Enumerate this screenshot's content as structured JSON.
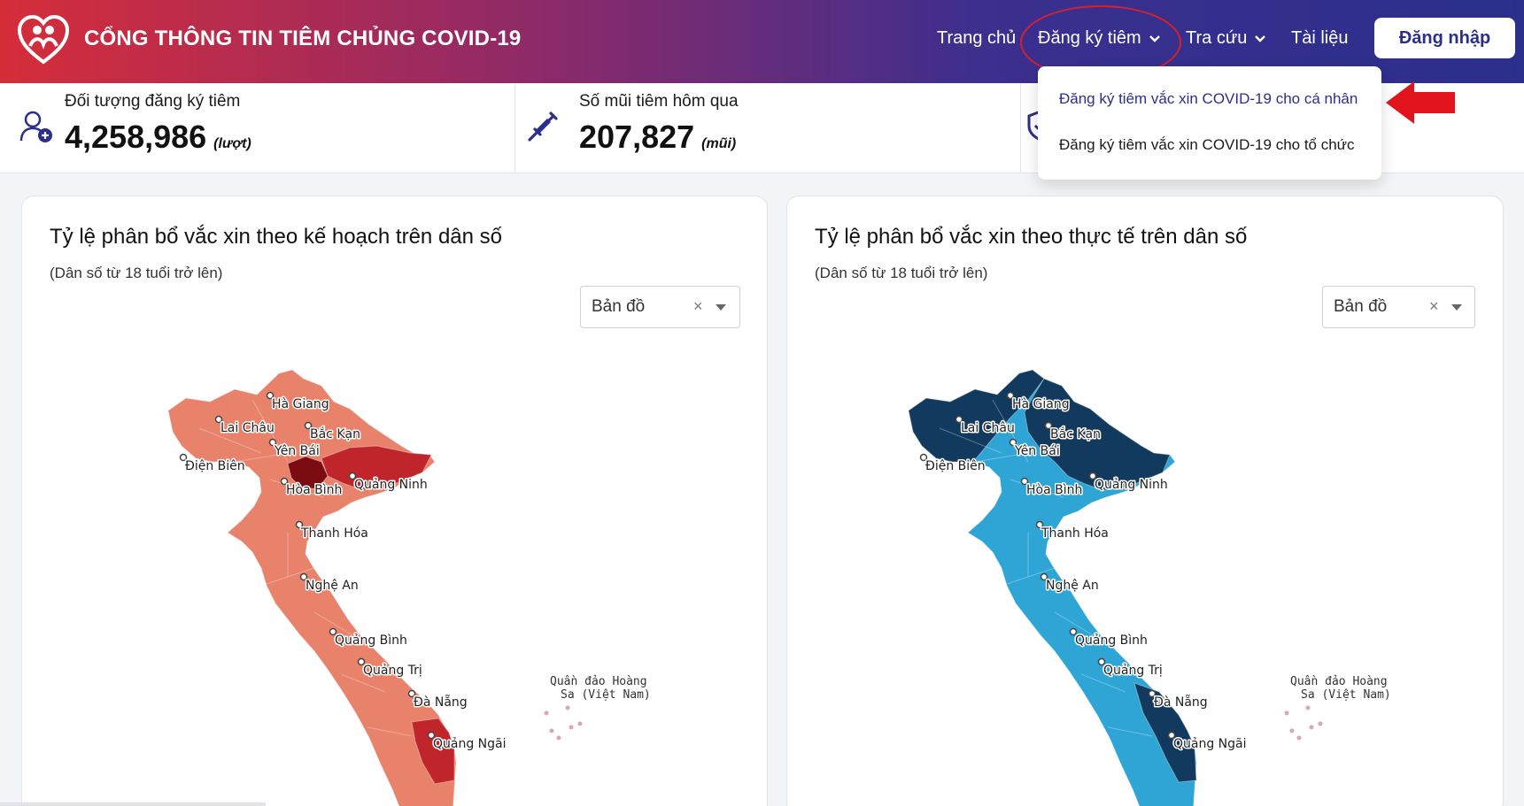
{
  "header": {
    "brand": "CỔNG THÔNG TIN TIÊM CHỦNG COVID-19",
    "logo_icon": "heart-people-icon",
    "nav": {
      "home": "Trang chủ",
      "register": "Đăng ký tiêm",
      "lookup": "Tra cứu",
      "docs": "Tài liệu"
    },
    "login": "Đăng nhập"
  },
  "dropdown": {
    "items": [
      "Đăng ký tiêm vắc xin COVID-19 cho cá nhân",
      "Đăng ký tiêm vắc xin COVID-19 cho tổ chức"
    ]
  },
  "stats": [
    {
      "label": "Đối tượng đăng ký tiêm",
      "value": "4,258,986",
      "unit": "(lượt)",
      "icon": "user-add-icon"
    },
    {
      "label": "Số mũi tiêm hôm qua",
      "value": "207,827",
      "unit": "(mũi)",
      "icon": "syringe-icon"
    }
  ],
  "cards": [
    {
      "title": "Tỷ lệ phân bổ vắc xin theo kế hoạch trên dân số",
      "subtitle": "(Dân số từ 18 tuổi trở lên)",
      "select_value": "Bản đồ",
      "select_clear": "×"
    },
    {
      "title": "Tỷ lệ phân bổ vắc xin theo thực tế trên dân số",
      "subtitle": "(Dân số từ 18 tuổi trở lên)",
      "select_value": "Bản đồ",
      "select_clear": "×"
    }
  ],
  "map_labels": {
    "ha_giang": "Hà Giang",
    "lai_chau": "Lai Châu",
    "bac_kan": "Bắc Kạn",
    "yen_bai": "Yên Bái",
    "dien_bien": "Điện Biên",
    "hoa_binh": "Hòa Bình",
    "quang_ninh": "Quảng Ninh",
    "thanh_hoa": "Thanh Hóa",
    "nghe_an": "Nghệ An",
    "quang_binh": "Quảng Bình",
    "quang_tri": "Quảng Trị",
    "da_nang": "Đà Nẵng",
    "quang_ngai": "Quảng Ngãi",
    "hoang_sa_1": "Quần đảo Hoàng",
    "hoang_sa_2": "Sa (Việt Nam)"
  },
  "colors": {
    "map1_base": "#e8826b",
    "map1_dark": "#c0252c",
    "map1_darkest": "#7a0c12",
    "map2_base": "#2fa5d6",
    "map2_dark": "#113a5e",
    "accent": "#2b2f8c",
    "annotation": "#d5202e"
  }
}
